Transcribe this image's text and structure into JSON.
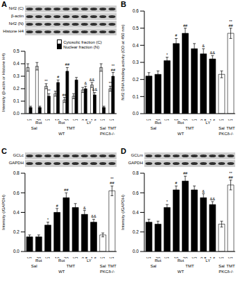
{
  "chart_data": [
    {
      "type": "bar",
      "title": "A",
      "blots": [
        "Nrf2 (C)",
        "β-actin",
        "Nrf2 (N)",
        "Histone H4"
      ],
      "ylabel": "Intensity (β-actin or Histone H4)",
      "ylim": [
        0,
        0.5
      ],
      "yticks": [
        {
          "value": 0,
          "label": "0.0"
        },
        0.1,
        0.2,
        0.3,
        0.4,
        0.5
      ],
      "categories": [
        "V1",
        "20",
        "V1",
        "10",
        "20",
        "V2",
        "0.8",
        "1.6",
        "V1",
        "V1"
      ],
      "label_rows": [
        [
          {
            "label": null,
            "span": 1
          },
          {
            "label": "Rot",
            "span": 1
          },
          {
            "label": null,
            "span": 1
          },
          {
            "label": "Rot",
            "span": 2
          },
          {
            "label": null,
            "span": 1
          },
          {
            "label": "LY",
            "span": 2
          },
          {
            "label": null,
            "span": 2
          }
        ],
        [
          {
            "label": "Sal",
            "span": 2
          },
          {
            "label": "TMT",
            "span": 6
          },
          {
            "label": "Sal",
            "span": 1
          },
          {
            "label": "TMT",
            "span": 1
          }
        ],
        [
          {
            "label": "WT",
            "span": 8
          },
          {
            "label": "PKCδ-/-",
            "span": 2
          }
        ]
      ],
      "legend": "top",
      "series": [
        {
          "name": "Cytosolic fraction (C)",
          "color": "#ffffff",
          "values": [
            0.37,
            0.38,
            0.22,
            0.16,
            0.11,
            0.14,
            0.19,
            0.23,
            0.37,
            0.2
          ],
          "errors": [
            0.03,
            0.03,
            0.02,
            0.02,
            0.02,
            0.02,
            0.02,
            0.02,
            0.03,
            0.02
          ],
          "annotations": [
            null,
            null,
            [
              "**"
            ],
            null,
            [
              "##"
            ],
            null,
            null,
            [
              "&&"
            ],
            null,
            [
              "**"
            ]
          ]
        },
        {
          "name": "Nuclear fraction (N)",
          "color": "#000000",
          "values": [
            0.05,
            0.05,
            0.14,
            0.25,
            0.34,
            0.27,
            0.2,
            0.15,
            0.05,
            0.3
          ],
          "errors": [
            0.01,
            0.01,
            0.02,
            0.02,
            0.03,
            0.02,
            0.02,
            0.02,
            0.01,
            0.03
          ],
          "annotations": [
            null,
            null,
            [
              "**"
            ],
            [
              "#"
            ],
            [
              "##"
            ],
            null,
            [
              "&"
            ],
            [
              "&&"
            ],
            null,
            [
              "**",
              "##"
            ]
          ]
        }
      ]
    },
    {
      "type": "bar",
      "title": "B",
      "blots": [],
      "ylabel": "Nrf2 DNA binding activity (OD at 450 nm)",
      "ylim": [
        0,
        0.6
      ],
      "yticks": [
        {
          "value": 0,
          "label": "0.0"
        },
        0.1,
        0.2,
        0.3,
        0.4,
        0.5,
        0.6
      ],
      "categories": [
        "V1",
        "20",
        "V1",
        "10",
        "20",
        "V2",
        "0.8",
        "1.6",
        "V1",
        "V1"
      ],
      "label_rows": [
        [
          {
            "label": null,
            "span": 1
          },
          {
            "label": "Rot",
            "span": 1
          },
          {
            "label": null,
            "span": 1
          },
          {
            "label": "Rot",
            "span": 2
          },
          {
            "label": null,
            "span": 1
          },
          {
            "label": "LY",
            "span": 2
          },
          {
            "label": null,
            "span": 2
          }
        ],
        [
          {
            "label": "Sal",
            "span": 2
          },
          {
            "label": "TMT",
            "span": 6
          },
          {
            "label": "Sal",
            "span": 1
          },
          {
            "label": "TMT",
            "span": 1
          }
        ],
        [
          {
            "label": "WT",
            "span": 8
          },
          {
            "label": "PKCδ-/-",
            "span": 2
          }
        ]
      ],
      "series": [
        {
          "colors": [
            "#000000",
            "#000000",
            "#000000",
            "#000000",
            "#000000",
            "#000000",
            "#000000",
            "#000000",
            "#ffffff",
            "#ffffff"
          ],
          "values": [
            0.22,
            0.23,
            0.31,
            0.41,
            0.47,
            0.38,
            0.35,
            0.32,
            0.23,
            0.47
          ],
          "errors": [
            0.02,
            0.02,
            0.02,
            0.03,
            0.03,
            0.03,
            0.03,
            0.02,
            0.02,
            0.03
          ],
          "annotations": [
            null,
            null,
            [
              "*"
            ],
            [
              "#"
            ],
            [
              "##"
            ],
            null,
            [
              "&"
            ],
            [
              "&&"
            ],
            null,
            [
              "**",
              "##"
            ]
          ]
        }
      ]
    },
    {
      "type": "bar",
      "title": "C",
      "blots": [
        "GCLc",
        "GAPDH"
      ],
      "ylabel": "Intensity (/GAPDH)",
      "ylim": [
        0,
        0.8
      ],
      "yticks": [
        {
          "value": 0,
          "label": "0.0"
        },
        0.2,
        0.4,
        0.6,
        0.8
      ],
      "categories": [
        "V1",
        "20",
        "V1",
        "10",
        "20",
        "V2",
        "0.8",
        "1.6",
        "V1",
        "V1"
      ],
      "label_rows": [
        [
          {
            "label": null,
            "span": 1
          },
          {
            "label": "Rot",
            "span": 1
          },
          {
            "label": null,
            "span": 1
          },
          {
            "label": "Rot",
            "span": 2
          },
          {
            "label": null,
            "span": 1
          },
          {
            "label": "LY",
            "span": 2
          },
          {
            "label": null,
            "span": 2
          }
        ],
        [
          {
            "label": "Sal",
            "span": 2
          },
          {
            "label": "TMT",
            "span": 6
          },
          {
            "label": "Sal",
            "span": 1
          },
          {
            "label": "TMT",
            "span": 1
          }
        ],
        [
          {
            "label": "WT",
            "span": 8
          },
          {
            "label": "PKCδ-/-",
            "span": 2
          }
        ]
      ],
      "series": [
        {
          "colors": [
            "#000000",
            "#000000",
            "#000000",
            "#000000",
            "#000000",
            "#000000",
            "#000000",
            "#000000",
            "#ffffff",
            "#ffffff"
          ],
          "values": [
            0.15,
            0.15,
            0.27,
            0.4,
            0.55,
            0.45,
            0.38,
            0.3,
            0.17,
            0.62
          ],
          "errors": [
            0.02,
            0.02,
            0.03,
            0.04,
            0.05,
            0.04,
            0.04,
            0.03,
            0.02,
            0.05
          ],
          "annotations": [
            null,
            null,
            [
              "*"
            ],
            [
              "#"
            ],
            [
              "##"
            ],
            null,
            [
              "&"
            ],
            [
              "&&"
            ],
            null,
            [
              "**",
              "##"
            ]
          ]
        }
      ]
    },
    {
      "type": "bar",
      "title": "D",
      "blots": [
        "GCLm",
        "GAPDH"
      ],
      "ylabel": "Intensity (/GAPDH)",
      "ylim": [
        0,
        0.8
      ],
      "yticks": [
        {
          "value": 0,
          "label": "0.0"
        },
        0.2,
        0.4,
        0.6,
        0.8
      ],
      "categories": [
        "V1",
        "20",
        "V1",
        "10",
        "20",
        "V2",
        "0.8",
        "1.6",
        "V1",
        "V1"
      ],
      "label_rows": [
        [
          {
            "label": null,
            "span": 1
          },
          {
            "label": "Rot",
            "span": 1
          },
          {
            "label": null,
            "span": 1
          },
          {
            "label": "Rot",
            "span": 2
          },
          {
            "label": null,
            "span": 1
          },
          {
            "label": "LY",
            "span": 2
          },
          {
            "label": null,
            "span": 2
          }
        ],
        [
          {
            "label": "Sal",
            "span": 2
          },
          {
            "label": "TMT",
            "span": 6
          },
          {
            "label": "Sal",
            "span": 1
          },
          {
            "label": "TMT",
            "span": 1
          }
        ],
        [
          {
            "label": "WT",
            "span": 8
          },
          {
            "label": "PKCδ-/-",
            "span": 2
          }
        ]
      ],
      "series": [
        {
          "colors": [
            "#000000",
            "#000000",
            "#000000",
            "#000000",
            "#000000",
            "#000000",
            "#000000",
            "#000000",
            "#ffffff",
            "#ffffff"
          ],
          "values": [
            0.3,
            0.28,
            0.45,
            0.63,
            0.72,
            0.63,
            0.55,
            0.48,
            0.28,
            0.68
          ],
          "errors": [
            0.03,
            0.03,
            0.03,
            0.04,
            0.05,
            0.04,
            0.04,
            0.03,
            0.03,
            0.05
          ],
          "annotations": [
            null,
            null,
            [
              "*"
            ],
            [
              "#"
            ],
            [
              "##"
            ],
            null,
            [
              "&"
            ],
            [
              "&&"
            ],
            null,
            [
              "**",
              "##"
            ]
          ]
        }
      ]
    }
  ]
}
